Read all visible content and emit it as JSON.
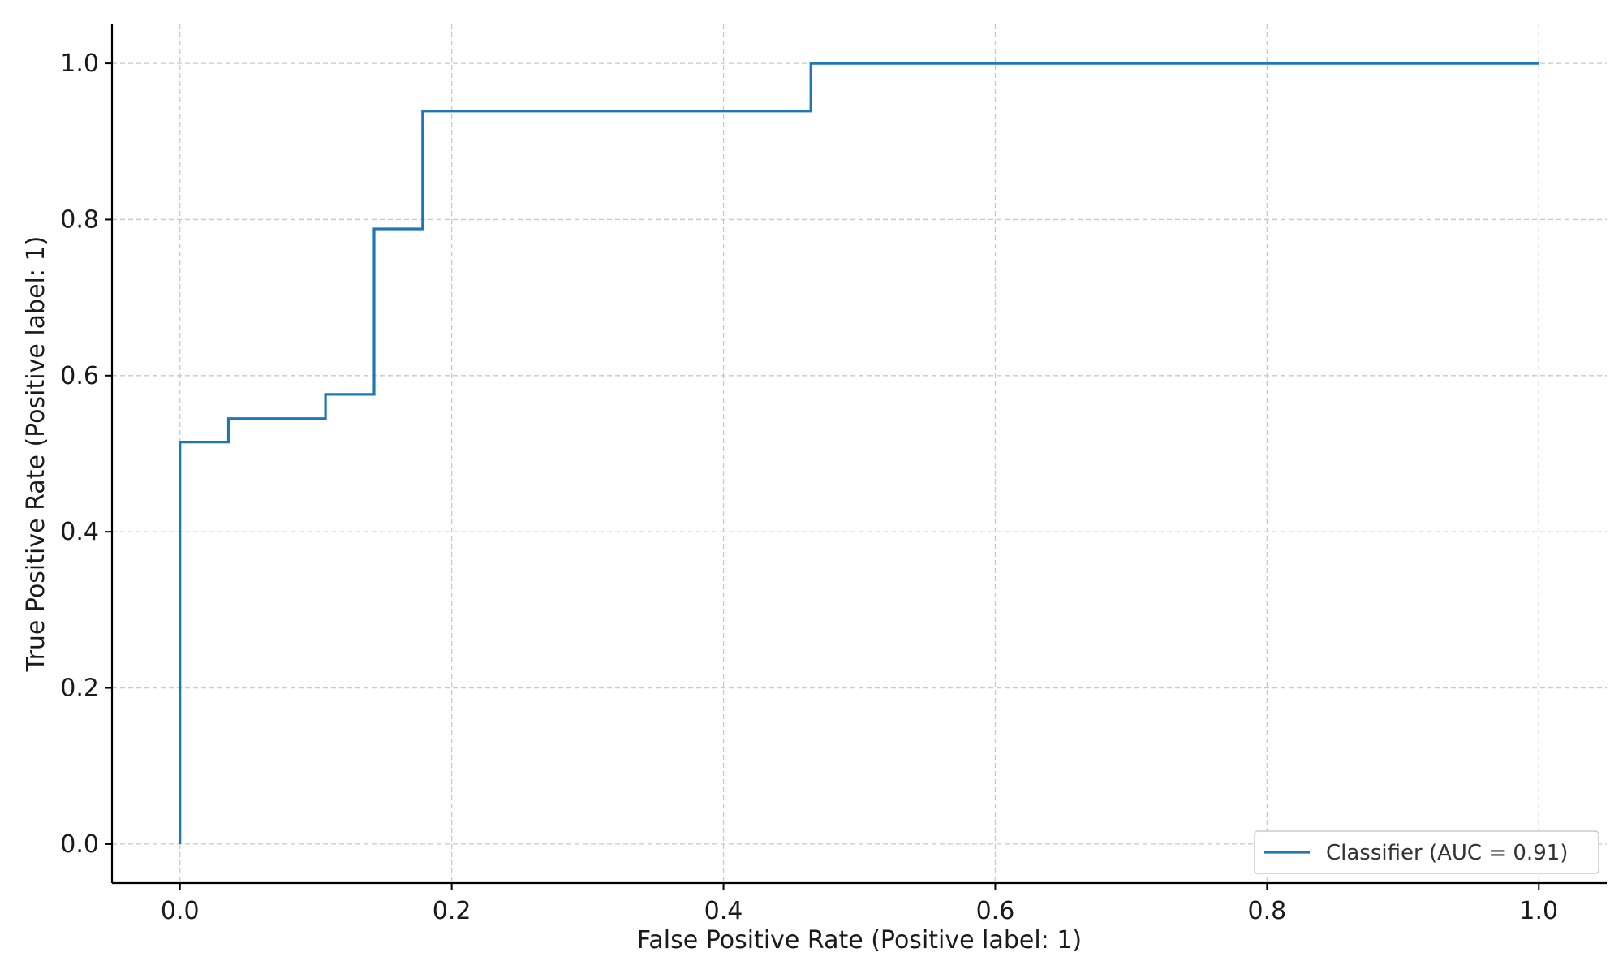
{
  "chart_data": {
    "type": "line",
    "title": "",
    "xlabel": "False Positive Rate (Positive label: 1)",
    "ylabel": "True Positive Rate (Positive label: 1)",
    "xlim": [
      -0.05,
      1.05
    ],
    "ylim": [
      -0.05,
      1.05
    ],
    "xticks": [
      "0.0",
      "0.2",
      "0.4",
      "0.6",
      "0.8",
      "1.0"
    ],
    "yticks": [
      "0.0",
      "0.2",
      "0.4",
      "0.6",
      "0.8",
      "1.0"
    ],
    "grid": true,
    "legend_position": "bottom-right",
    "series": [
      {
        "name": "Classifier (AUC = 0.91)",
        "color": "#1f77b4",
        "x": [
          0.0,
          0.0,
          0.0357,
          0.0357,
          0.1071,
          0.1071,
          0.1429,
          0.1429,
          0.1786,
          0.1786,
          0.4643,
          0.4643,
          1.0
        ],
        "y": [
          0.0,
          0.515,
          0.515,
          0.545,
          0.545,
          0.576,
          0.576,
          0.788,
          0.788,
          0.939,
          0.939,
          1.0,
          1.0
        ]
      }
    ]
  }
}
